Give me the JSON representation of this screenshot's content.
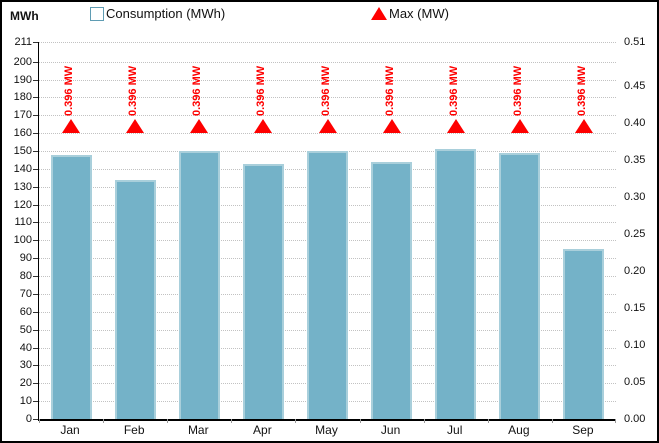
{
  "header": {
    "left_axis_unit": "MWh"
  },
  "legend": {
    "consumption_label": "Consumption (MWh)",
    "max_label": "Max (MW)"
  },
  "colors": {
    "bar_fill": "#74b2c8",
    "bar_border": "#a9cfdb",
    "marker_red": "#fe0000",
    "grid": "#c2c2c2",
    "axis": "#000000",
    "text": "#111111"
  },
  "chart_data": {
    "type": "bar",
    "title": "",
    "legend_position": "top",
    "grid": true,
    "categories": [
      "Jan",
      "Feb",
      "Mar",
      "Apr",
      "May",
      "Jun",
      "Jul",
      "Aug",
      "Sep"
    ],
    "series": [
      {
        "name": "Consumption (MWh)",
        "type": "bar",
        "axis": "left",
        "color": "#74b2c8",
        "values": [
          148,
          134,
          150,
          143,
          150,
          144,
          151,
          149,
          95
        ]
      },
      {
        "name": "Max (MW)",
        "type": "triangle-marker",
        "axis": "right",
        "color": "#fe0000",
        "values": [
          0.396,
          0.396,
          0.396,
          0.396,
          0.396,
          0.396,
          0.396,
          0.396,
          0.396
        ],
        "point_labels": [
          "0.396 MW",
          "0.396 MW",
          "0.396 MW",
          "0.396 MW",
          "0.396 MW",
          "0.396 MW",
          "0.396 MW",
          "0.396 MW",
          "0.396 MW"
        ]
      }
    ],
    "left_axis": {
      "title": "MWh",
      "min": 0,
      "max": 211,
      "tick_values": [
        0,
        10,
        20,
        30,
        40,
        50,
        60,
        70,
        80,
        90,
        100,
        110,
        120,
        130,
        140,
        150,
        160,
        170,
        180,
        190,
        200,
        211
      ],
      "tick_labels": [
        "0",
        "10",
        "20",
        "30",
        "40",
        "50",
        "60",
        "70",
        "80",
        "90",
        "100",
        "110",
        "120",
        "130",
        "140",
        "150",
        "160",
        "170",
        "180",
        "190",
        "200",
        "211"
      ]
    },
    "right_axis": {
      "min": 0,
      "max": 0.51,
      "tick_values": [
        0,
        0.05,
        0.1,
        0.15,
        0.2,
        0.25,
        0.3,
        0.35,
        0.4,
        0.45,
        0.51
      ],
      "tick_labels": [
        "0.00",
        "0.05",
        "0.10",
        "0.15",
        "0.20",
        "0.25",
        "0.30",
        "0.35",
        "0.40",
        "0.45",
        "0.51"
      ]
    }
  }
}
